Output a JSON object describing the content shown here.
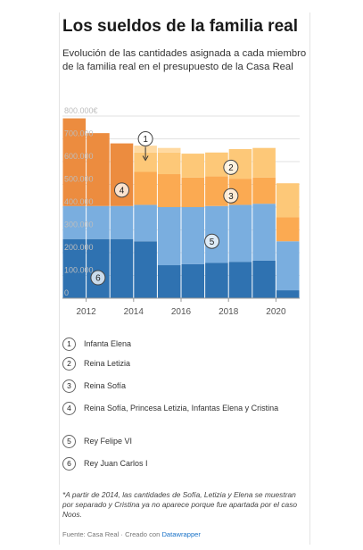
{
  "title": "Los sueldos de la familia real",
  "subtitle": "Evolución de las cantidades asignada a cada miembro de la familia real en el presupuesto de la Casa Real",
  "chart_data": {
    "type": "area",
    "stacked": true,
    "step": true,
    "x": [
      2011,
      2012,
      2013,
      2014,
      2015,
      2016,
      2017,
      2018,
      2019,
      2020,
      2021
    ],
    "xticks": [
      "2012",
      "2014",
      "2016",
      "2018",
      "2020"
    ],
    "xtick_values": [
      2012,
      2014,
      2016,
      2018,
      2020
    ],
    "yticks": [
      "800.000€",
      "700.000",
      "600.000",
      "500.000",
      "400.000",
      "300.000",
      "200.000",
      "100.000",
      "0"
    ],
    "ytick_values": [
      800000,
      700000,
      600000,
      500000,
      400000,
      300000,
      200000,
      100000,
      0
    ],
    "ylim": [
      0,
      800000
    ],
    "grid": true,
    "series": [
      {
        "id": "6",
        "color": "#2f72b1",
        "values": [
          260000,
          260000,
          260000,
          250000,
          145000,
          150000,
          155000,
          160000,
          165000,
          35000,
          35000
        ]
      },
      {
        "id": "5",
        "color": "#7aaedf",
        "values": [
          145000,
          145000,
          145000,
          160000,
          255000,
          250000,
          250000,
          250000,
          250000,
          215000,
          215000
        ]
      },
      {
        "id": "4",
        "color": "#ec8c3f",
        "values": [
          385000,
          320000,
          275000,
          0,
          0,
          0,
          0,
          0,
          0,
          0,
          0
        ]
      },
      {
        "id": "3",
        "color": "#fbaa52",
        "values": [
          0,
          0,
          0,
          145000,
          145000,
          130000,
          130000,
          115000,
          115000,
          105000,
          105000
        ]
      },
      {
        "id": "2",
        "color": "#fdc878",
        "values": [
          0,
          0,
          0,
          85000,
          95000,
          105000,
          105000,
          130000,
          130000,
          150000,
          150000
        ]
      },
      {
        "id": "1",
        "color": "#ffd9a0",
        "values": [
          0,
          0,
          0,
          30000,
          20000,
          0,
          0,
          0,
          0,
          0,
          0
        ]
      }
    ],
    "annotations": [
      {
        "label": "1",
        "x": 2014.5,
        "y": 700000,
        "arrow": true
      },
      {
        "label": "2",
        "x": 2018.1,
        "y": 575000
      },
      {
        "label": "3",
        "x": 2018.1,
        "y": 450000
      },
      {
        "label": "4",
        "x": 2013.5,
        "y": 475000
      },
      {
        "label": "5",
        "x": 2017.3,
        "y": 250000
      },
      {
        "label": "6",
        "x": 2012.5,
        "y": 90000
      }
    ]
  },
  "legend": [
    {
      "num": "1",
      "label": "Infanta Elena"
    },
    {
      "num": "2",
      "label": "Reina Letizia"
    },
    {
      "num": "3",
      "label": "Reina Sofía"
    },
    {
      "num": "4",
      "label": "Reina Sofía, Princesa Letizia, Infantas Elena y Cristina"
    },
    {
      "num": "5",
      "label": "Rey Felipe VI"
    },
    {
      "num": "6",
      "label": "Rey Juan Carlos I"
    }
  ],
  "note": "*A partir de 2014, las cantidades de Sofía, Letizia y Elena se muestran por separado y Cristina ya no aparece porque fue apartada por el caso Noos.",
  "source": {
    "prefix": "Fuente: Casa Real · Creado con",
    "link": "Datawrapper"
  }
}
